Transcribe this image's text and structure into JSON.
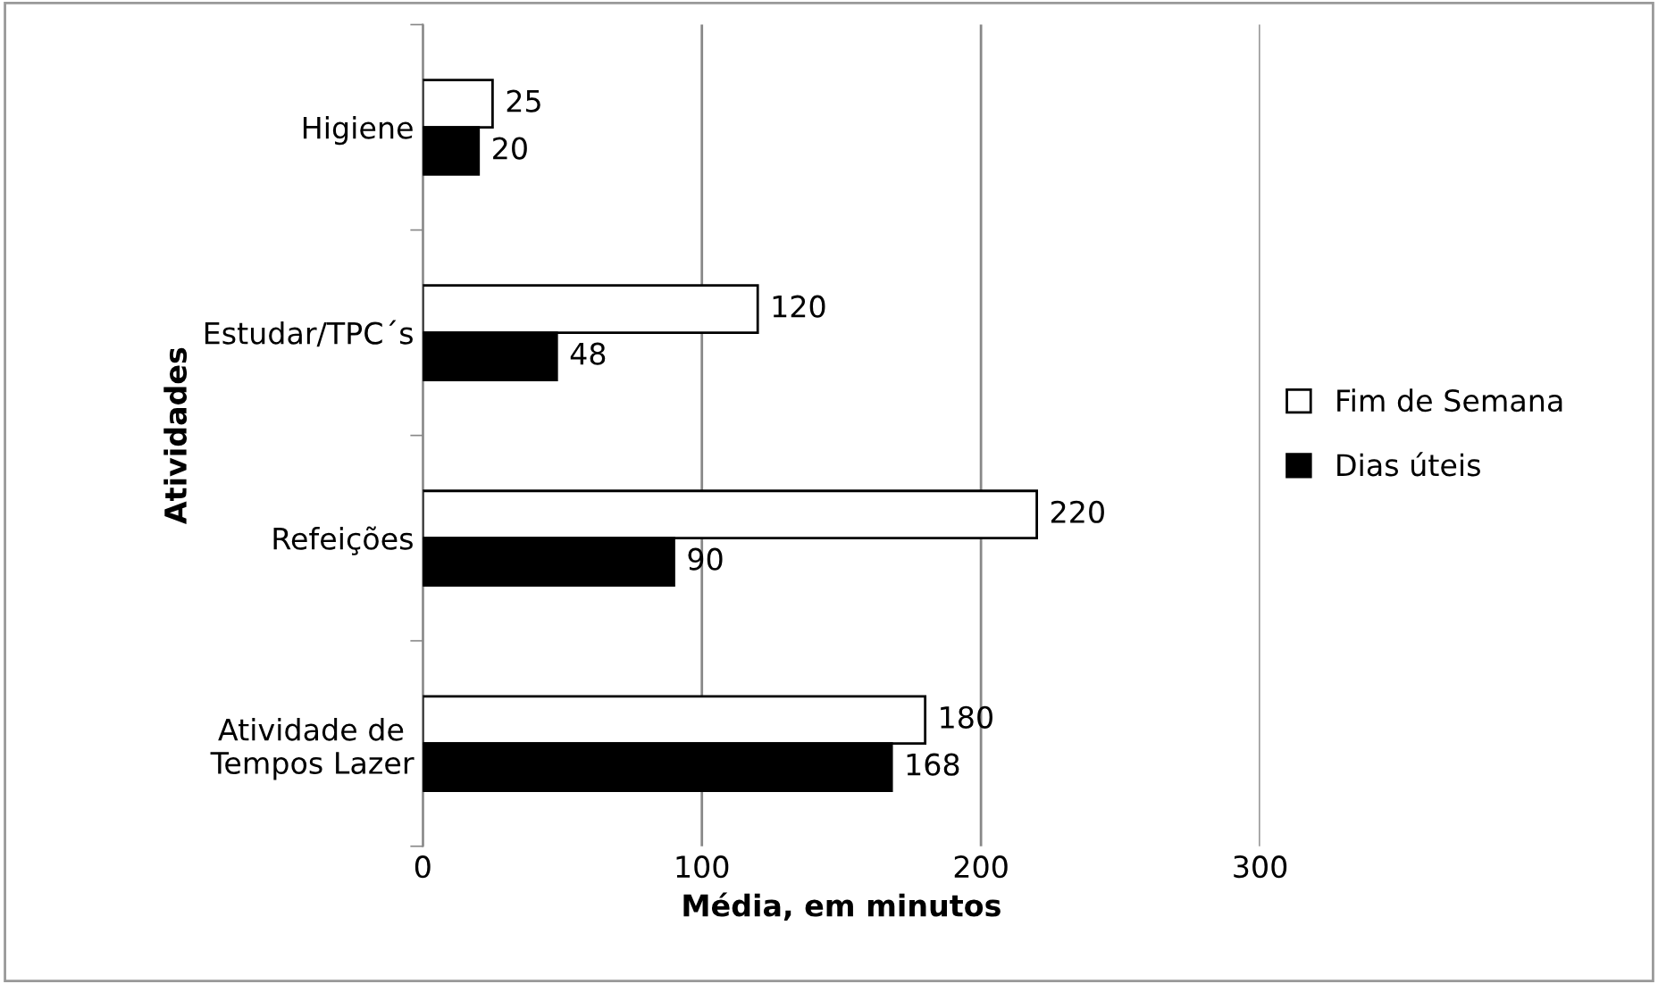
{
  "chart_data": {
    "type": "bar",
    "orientation": "horizontal",
    "categories": [
      "Higiene",
      "Estudar/TPC´s",
      "Refeições",
      "Atividade de \nTempos Lazer"
    ],
    "series": [
      {
        "name": "Fim de Semana",
        "color": "#ffffff",
        "values": [
          25,
          120,
          220,
          180
        ]
      },
      {
        "name": "Dias úteis",
        "color": "#000000",
        "values": [
          20,
          48,
          90,
          168
        ]
      }
    ],
    "xlabel": "Média, em minutos",
    "ylabel": "Atividades",
    "xlim": [
      0,
      300
    ],
    "xticks": [
      0,
      100,
      200,
      300
    ],
    "grid": "x",
    "legend": "right",
    "data_labels": true
  }
}
